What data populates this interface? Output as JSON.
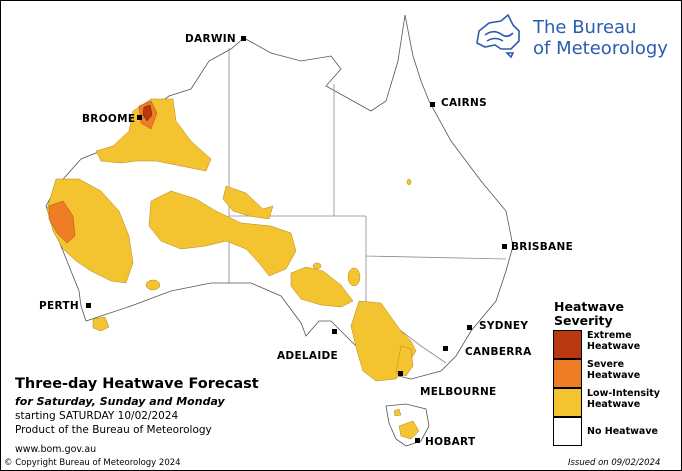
{
  "logo": {
    "line1": "The Bureau",
    "line2": "of Meteorology",
    "icon": "australia-outline-logo-icon",
    "color": "#2a5db0"
  },
  "title": {
    "main": "Three-day Heatwave Forecast",
    "sub": "for Saturday, Sunday and Monday",
    "starting": "starting SATURDAY 10/02/2024",
    "product": "Product of the Bureau of Meteorology",
    "website": "www.bom.gov.au"
  },
  "footer": {
    "copyright": "© Copyright Bureau of Meteorology 2024",
    "issued": "Issued on 09/02/2024"
  },
  "cities": {
    "darwin": "DARWIN",
    "broome": "BROOME",
    "cairns": "CAIRNS",
    "brisbane": "BRISBANE",
    "perth": "PERTH",
    "sydney": "SYDNEY",
    "canberra": "CANBERRA",
    "adelaide": "ADELAIDE",
    "melbourne": "MELBOURNE",
    "hobart": "HOBART"
  },
  "legend": {
    "title_line1": "Heatwave",
    "title_line2": "Severity",
    "items": [
      {
        "line1": "Extreme",
        "line2": "Heatwave",
        "color": "#b8380f"
      },
      {
        "line1": "Severe",
        "line2": "Heatwave",
        "color": "#ef7d25"
      },
      {
        "line1": "Low-Intensity",
        "line2": "Heatwave",
        "color": "#f4c330"
      },
      {
        "line1": "No Heatwave",
        "line2": "",
        "color": "#ffffff"
      }
    ]
  },
  "colors": {
    "extreme": "#b8380f",
    "severe": "#ef7d25",
    "low": "#f4c330",
    "none": "#ffffff",
    "coast": "#555555",
    "border": "#8a8a8a"
  }
}
